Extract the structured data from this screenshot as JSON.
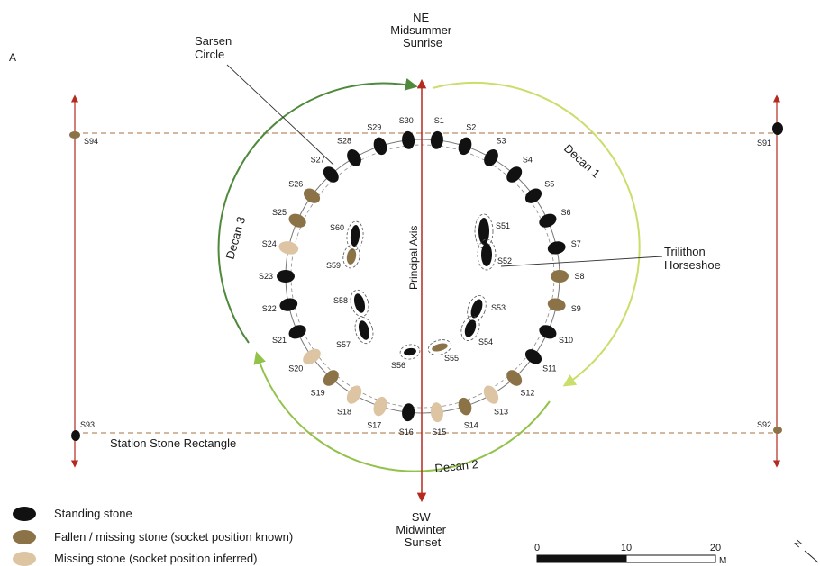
{
  "panel_label": "A",
  "top_label": [
    "NE",
    "Midsummer",
    "Sunrise"
  ],
  "bottom_label": [
    "SW",
    "Midwinter",
    "Sunset"
  ],
  "sarsen_label": [
    "Sarsen",
    "Circle"
  ],
  "trilithon_label": [
    "Trilithon",
    "Horseshoe"
  ],
  "principal_axis": "Principal Axis",
  "station_rectangle": "Station Stone Rectangle",
  "decans": [
    "Decan 1",
    "Decan 2",
    "Decan 3"
  ],
  "legend": [
    {
      "label": "Standing stone",
      "key": "standing"
    },
    {
      "label": "Fallen / missing stone (socket position known)",
      "key": "fallen"
    },
    {
      "label": "Missing stone (socket position inferred)",
      "key": "missing"
    }
  ],
  "scale": {
    "ticks": [
      "0",
      "10",
      "20"
    ],
    "unit": "M"
  },
  "compass": "N",
  "colors": {
    "standing": "#111111",
    "fallen": "#8b7347",
    "missing": "#ddc4a2",
    "axis": "#b52a1e",
    "decan1": "#c9de6b",
    "decan2": "#93c24a",
    "decan3": "#4f8a3c",
    "rectangle": "#b98c66"
  },
  "sarsen_stones": [
    {
      "id": "S1",
      "type": "standing"
    },
    {
      "id": "S2",
      "type": "standing"
    },
    {
      "id": "S3",
      "type": "standing"
    },
    {
      "id": "S4",
      "type": "standing"
    },
    {
      "id": "S5",
      "type": "standing"
    },
    {
      "id": "S6",
      "type": "standing"
    },
    {
      "id": "S7",
      "type": "standing"
    },
    {
      "id": "S8",
      "type": "fallen"
    },
    {
      "id": "S9",
      "type": "fallen"
    },
    {
      "id": "S10",
      "type": "standing"
    },
    {
      "id": "S11",
      "type": "standing"
    },
    {
      "id": "S12",
      "type": "fallen"
    },
    {
      "id": "S13",
      "type": "missing"
    },
    {
      "id": "S14",
      "type": "fallen"
    },
    {
      "id": "S15",
      "type": "missing"
    },
    {
      "id": "S16",
      "type": "standing"
    },
    {
      "id": "S17",
      "type": "missing"
    },
    {
      "id": "S18",
      "type": "missing"
    },
    {
      "id": "S19",
      "type": "fallen"
    },
    {
      "id": "S20",
      "type": "missing"
    },
    {
      "id": "S21",
      "type": "standing"
    },
    {
      "id": "S22",
      "type": "standing"
    },
    {
      "id": "S23",
      "type": "standing"
    },
    {
      "id": "S24",
      "type": "missing"
    },
    {
      "id": "S25",
      "type": "fallen"
    },
    {
      "id": "S26",
      "type": "fallen"
    },
    {
      "id": "S27",
      "type": "standing"
    },
    {
      "id": "S28",
      "type": "standing"
    },
    {
      "id": "S29",
      "type": "standing"
    },
    {
      "id": "S30",
      "type": "standing"
    }
  ],
  "trilithon_stones": [
    {
      "id": "S51",
      "type": "standing"
    },
    {
      "id": "S52",
      "type": "standing"
    },
    {
      "id": "S53",
      "type": "standing"
    },
    {
      "id": "S54",
      "type": "standing"
    },
    {
      "id": "S55",
      "type": "fallen"
    },
    {
      "id": "S56",
      "type": "standing"
    },
    {
      "id": "S57",
      "type": "standing"
    },
    {
      "id": "S58",
      "type": "standing"
    },
    {
      "id": "S59",
      "type": "fallen"
    },
    {
      "id": "S60",
      "type": "standing"
    }
  ],
  "station_stones": [
    {
      "id": "S91",
      "type": "standing"
    },
    {
      "id": "S92",
      "type": "fallen"
    },
    {
      "id": "S93",
      "type": "standing"
    },
    {
      "id": "S94",
      "type": "fallen"
    }
  ]
}
